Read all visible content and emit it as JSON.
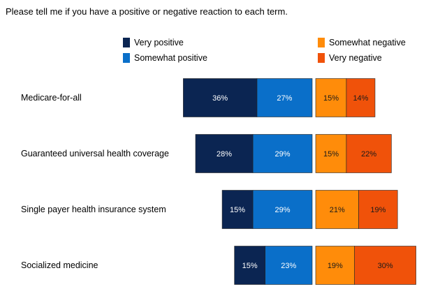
{
  "chart_data": {
    "type": "bar",
    "orientation": "horizontal-diverging",
    "title": "Please tell me if you have a positive or negative reaction to each term.",
    "categories": [
      "Medicare-for-all",
      "Guaranteed universal health coverage",
      "Single payer health insurance system",
      "Socialized medicine"
    ],
    "series": [
      {
        "name": "Very positive",
        "side": "positive",
        "color": "#0b2552",
        "values": [
          36,
          28,
          15,
          15
        ]
      },
      {
        "name": "Somewhat positive",
        "side": "positive",
        "color": "#0a6fc9",
        "values": [
          27,
          29,
          29,
          23
        ]
      },
      {
        "name": "Somewhat negative",
        "side": "negative",
        "color": "#ff8c0a",
        "values": [
          15,
          15,
          21,
          19
        ]
      },
      {
        "name": "Very negative",
        "side": "negative",
        "color": "#f0520a",
        "values": [
          14,
          22,
          19,
          30
        ]
      }
    ],
    "value_suffix": "%",
    "grid": false,
    "legend_position": "top"
  }
}
